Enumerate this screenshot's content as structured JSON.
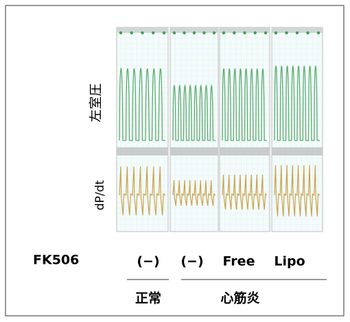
{
  "labels": {
    "pressure": "左室圧",
    "dpdt": "dP/dt"
  },
  "treatment": {
    "label": "FK506",
    "columns": [
      "(−)",
      "(−)",
      "Free",
      "Lipo"
    ]
  },
  "groups": [
    "正常",
    "心筋炎"
  ]
}
